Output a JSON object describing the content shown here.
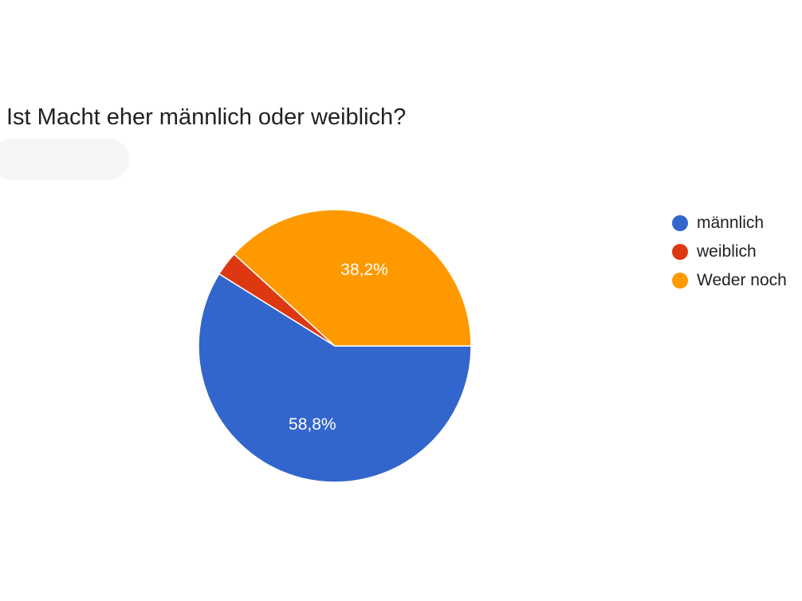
{
  "header": {
    "question_title": "Ist Macht eher männlich oder weiblich?"
  },
  "chart_data": {
    "type": "pie",
    "title": "Ist Macht eher männlich oder weiblich?",
    "legend_position": "right",
    "labels": [
      "männlich",
      "weiblich",
      "Weder noch"
    ],
    "values": [
      58.8,
      2.9,
      38.2
    ],
    "value_labels": [
      "58,8%",
      "",
      "38,2%"
    ],
    "colors": [
      "#3366cc",
      "#dc3912",
      "#ff9900"
    ]
  }
}
